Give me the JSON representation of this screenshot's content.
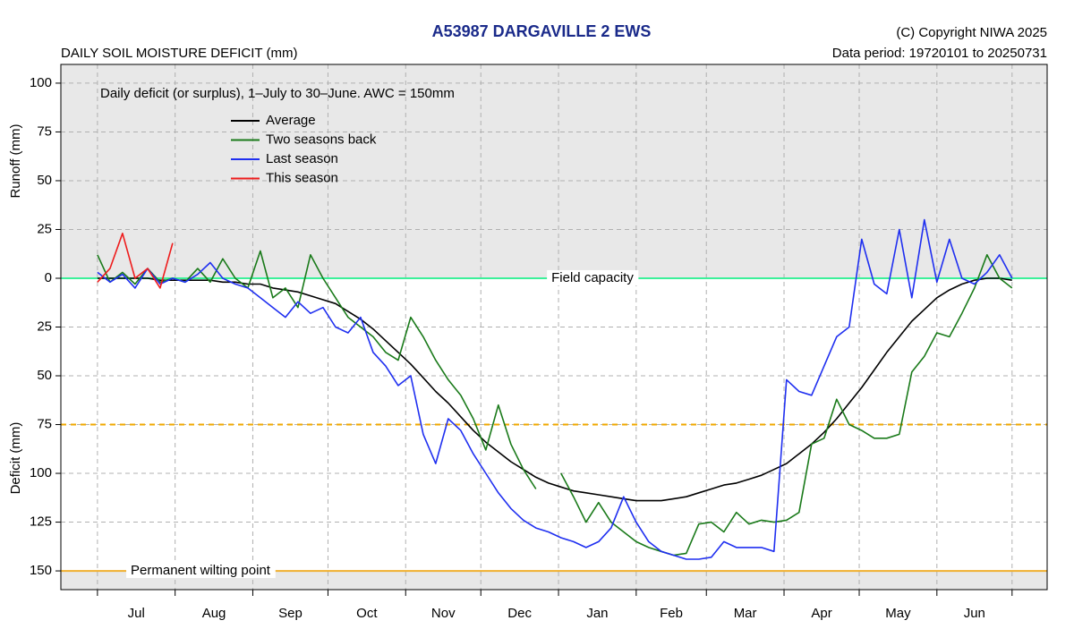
{
  "chart_data": {
    "type": "line",
    "title": "A53987  DARGAVILLE 2 EWS",
    "copyright": "(C) Copyright NIWA  2025",
    "data_period": "Data period:  19720101  to  20250731",
    "subtitle": "DAILY SOIL MOISTURE DEFICIT (mm)",
    "annotation": "Daily deficit (or surplus), 1–July to 30–June.  AWC = 150mm",
    "y_label_upper": "Runoff (mm)",
    "y_label_lower": "Deficit (mm)",
    "xlim": [
      -14.6,
      379
    ],
    "xticks": [
      0,
      31,
      62,
      92,
      123,
      153,
      184,
      215,
      243,
      274,
      304,
      335,
      365
    ],
    "month_labels": [
      "Jul",
      "Aug",
      "Sep",
      "Oct",
      "Nov",
      "Dec",
      "Jan",
      "Feb",
      "Mar",
      "Apr",
      "May",
      "Jun"
    ],
    "ylim": [
      -159.6,
      109.6
    ],
    "yticks": [
      100,
      75,
      50,
      25,
      0,
      {
        "value": -25,
        "label": "25"
      },
      {
        "value": -50,
        "label": "50"
      },
      {
        "value": -75,
        "label": "75"
      },
      {
        "value": -100,
        "label": "100"
      },
      {
        "value": -125,
        "label": "125"
      },
      {
        "value": -150,
        "label": "150"
      }
    ],
    "grid": true,
    "legend": "upper left",
    "reference_lines": [
      {
        "value": 0,
        "label": "Field capacity",
        "color": "#3cf09a",
        "style": "solid"
      },
      {
        "value": -75,
        "color": "#f0a800",
        "style": "dashed"
      },
      {
        "value": -150,
        "label": "Permanent wilting point",
        "color": "#f0b030",
        "style": "solid"
      }
    ],
    "x": [
      0,
      5,
      10,
      15,
      20,
      25,
      30,
      35,
      40,
      45,
      50,
      55,
      60,
      65,
      70,
      75,
      80,
      85,
      90,
      95,
      100,
      105,
      110,
      115,
      120,
      125,
      130,
      135,
      140,
      145,
      150,
      155,
      160,
      165,
      170,
      175,
      180,
      185,
      190,
      195,
      200,
      205,
      210,
      215,
      220,
      225,
      230,
      235,
      240,
      245,
      250,
      255,
      260,
      265,
      270,
      275,
      280,
      285,
      290,
      295,
      300,
      305,
      310,
      315,
      320,
      325,
      330,
      335,
      340,
      345,
      350,
      355,
      360,
      365
    ],
    "series": [
      {
        "name": "Average",
        "color": "#000000",
        "values": [
          0,
          0,
          0,
          0,
          0,
          -1,
          -1,
          -1,
          -1,
          -1,
          -2,
          -2,
          -3,
          -3,
          -5,
          -6,
          -7,
          -9,
          -11,
          -13,
          -17,
          -21,
          -26,
          -32,
          -38,
          -44,
          -51,
          -58,
          -64,
          -71,
          -78,
          -84,
          -89,
          -94,
          -98,
          -102,
          -105,
          -107,
          -109,
          -110,
          -111,
          -112,
          -113,
          -114,
          -114,
          -114,
          -113,
          -112,
          -110,
          -108,
          -106,
          -105,
          -103,
          -101,
          -98,
          -95,
          -90,
          -85,
          -79,
          -72,
          -64,
          -56,
          -47,
          -38,
          -30,
          -22,
          -16,
          -10,
          -6,
          -3,
          -1,
          0,
          0,
          -1
        ]
      },
      {
        "name": "Two seasons back",
        "color": "#1a7a1a",
        "values": [
          12,
          -2,
          3,
          -3,
          5,
          -2,
          0,
          -2,
          5,
          -2,
          10,
          0,
          -5,
          14,
          -10,
          -5,
          -15,
          12,
          0,
          -10,
          -20,
          -25,
          -30,
          -38,
          -42,
          -20,
          -30,
          -42,
          -52,
          -60,
          -72,
          -88,
          -65,
          -85,
          -98,
          -108,
          null,
          -100,
          -112,
          -125,
          -115,
          -125,
          -130,
          -135,
          -138,
          -140,
          -142,
          -141,
          -126,
          -125,
          -130,
          -120,
          -126,
          -124,
          -125,
          -124,
          -120,
          -85,
          -82,
          -62,
          -75,
          -78,
          -82,
          -82,
          -80,
          -48,
          -40,
          -28,
          -30,
          -18,
          -5,
          12,
          0,
          -5
        ]
      },
      {
        "name": "Last season",
        "color": "#1f2ff0",
        "values": [
          3,
          -2,
          2,
          -5,
          5,
          -3,
          0,
          -2,
          2,
          8,
          0,
          -3,
          -5,
          -10,
          -15,
          -20,
          -12,
          -18,
          -15,
          -25,
          -28,
          -20,
          -38,
          -45,
          -55,
          -50,
          -80,
          -95,
          -72,
          -78,
          -90,
          -100,
          -110,
          -118,
          -124,
          -128,
          -130,
          -133,
          -135,
          -138,
          -135,
          -128,
          -112,
          -125,
          -135,
          -140,
          -142,
          -144,
          -144,
          -143,
          -135,
          -138,
          -138,
          -138,
          -140,
          -52,
          -58,
          -60,
          -45,
          -30,
          -25,
          20,
          -3,
          -8,
          25,
          -10,
          30,
          -2,
          20,
          0,
          -3,
          3,
          12,
          0
        ]
      },
      {
        "name": "This season",
        "color": "#ee1c1c",
        "values": [
          -2,
          5,
          23,
          0,
          5,
          -5,
          18,
          null,
          null,
          null,
          null,
          null,
          null,
          null,
          null,
          null,
          null,
          null,
          null,
          null,
          null,
          null,
          null,
          null,
          null,
          null,
          null,
          null,
          null,
          null,
          null,
          null,
          null,
          null,
          null,
          null,
          null,
          null,
          null,
          null,
          null,
          null,
          null,
          null,
          null,
          null,
          null,
          null,
          null,
          null,
          null,
          null,
          null,
          null,
          null,
          null,
          null,
          null,
          null,
          null,
          null,
          null,
          null,
          null,
          null,
          null,
          null,
          null,
          null,
          null,
          null,
          null,
          null,
          null
        ]
      }
    ]
  }
}
